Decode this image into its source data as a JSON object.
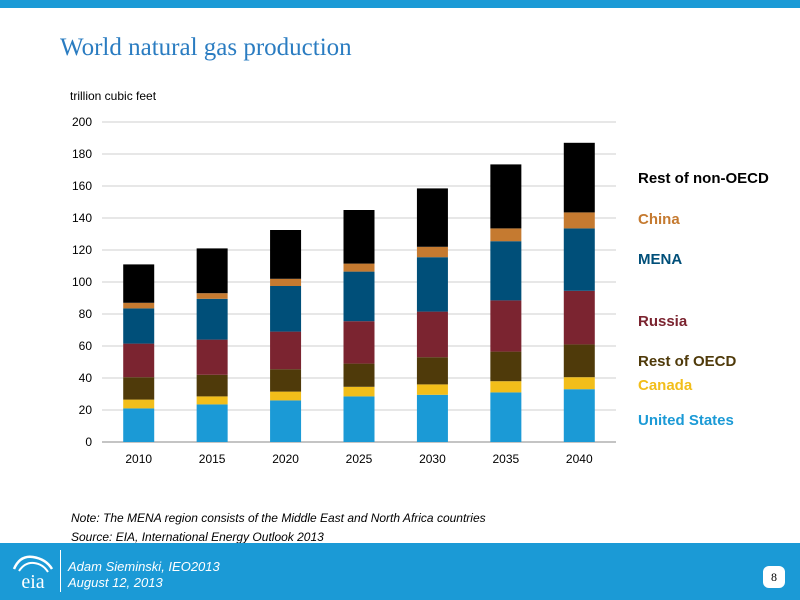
{
  "slide": {
    "title": "World natural gas production",
    "note": "Note:  The MENA region consists of the Middle East and North Africa countries",
    "source": "Source:  EIA, International Energy Outlook 2013",
    "page_number": "8"
  },
  "footer": {
    "logo_text": "eia",
    "presenter": "Adam Sieminski, IEO2013",
    "date": "August 12, 2013"
  },
  "chart_data": {
    "type": "bar",
    "stacked": true,
    "title": "World natural gas production",
    "ylabel": "trillion cubic feet",
    "xlabel": "",
    "ylim": [
      0,
      200
    ],
    "yticks": [
      0,
      20,
      40,
      60,
      80,
      100,
      120,
      140,
      160,
      180,
      200
    ],
    "grid": true,
    "legend_position": "right",
    "categories": [
      "2010",
      "2015",
      "2020",
      "2025",
      "2030",
      "2035",
      "2040"
    ],
    "series": [
      {
        "name": "United States",
        "color": "#1b9ad6",
        "values": [
          21,
          23.5,
          26,
          28.5,
          29.5,
          31,
          33
        ]
      },
      {
        "name": "Canada",
        "color": "#f2be1a",
        "values": [
          5.5,
          5,
          5.5,
          6,
          6.5,
          7,
          7.5
        ]
      },
      {
        "name": "Rest of OECD",
        "color": "#4f3a0a",
        "values": [
          14,
          13.5,
          14,
          14.5,
          17,
          18.5,
          20.5
        ]
      },
      {
        "name": "Russia",
        "color": "#7b2430",
        "values": [
          21,
          22,
          23.5,
          26.5,
          28.5,
          32,
          33.5
        ]
      },
      {
        "name": "MENA",
        "color": "#004f79",
        "values": [
          22,
          25.5,
          28.5,
          31,
          34,
          37,
          39
        ]
      },
      {
        "name": "China",
        "color": "#c57a30",
        "values": [
          3.5,
          3.5,
          4.5,
          5,
          6.5,
          8,
          10
        ]
      },
      {
        "name": "Rest of non-OECD",
        "color": "#000000",
        "values": [
          24,
          28,
          30.5,
          33.5,
          36.5,
          40,
          43.5
        ]
      }
    ]
  }
}
